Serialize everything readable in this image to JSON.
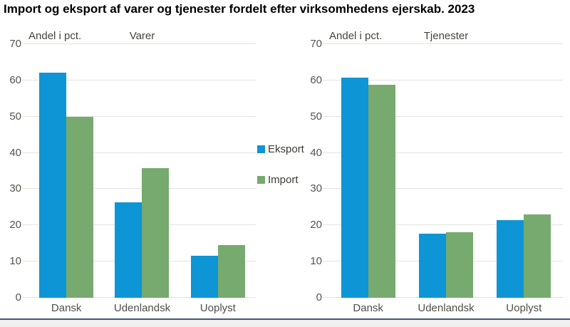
{
  "title": "Import og eksport af varer og tjenester fordelt efter virksomhedens ejerskab. 2023",
  "legend": {
    "items": [
      {
        "label": "Eksport",
        "color": "#0d95d5"
      },
      {
        "label": "Import",
        "color": "#77aa6e"
      }
    ]
  },
  "colors": {
    "eksport_blue": "#0d95d5",
    "import_green": "#77aa6e",
    "gridline": "#e3e3df",
    "axis_text": "#55534b",
    "footer_bar_navy": "#3c5a7a",
    "footer_strip_gray": "#f1f0ee"
  },
  "chart_data": [
    {
      "type": "bar",
      "title": "Varer",
      "ylabel": "Andel i pct.",
      "ylim": [
        0,
        70
      ],
      "ytick_step": 10,
      "grid": true,
      "legend_position": "center-between-charts",
      "categories": [
        "Dansk",
        "Udenlandsk",
        "Uoplyst"
      ],
      "series": [
        {
          "name": "Eksport",
          "color": "#0d95d5",
          "values": [
            62.1,
            26.3,
            11.7
          ]
        },
        {
          "name": "Import",
          "color": "#77aa6e",
          "values": [
            49.9,
            35.8,
            14.5
          ]
        }
      ]
    },
    {
      "type": "bar",
      "title": "Tjenester",
      "ylabel": "Andel i pct.",
      "ylim": [
        0,
        70
      ],
      "ytick_step": 10,
      "grid": true,
      "legend_position": "center-between-charts",
      "categories": [
        "Dansk",
        "Udenlandsk",
        "Uoplyst"
      ],
      "series": [
        {
          "name": "Eksport",
          "color": "#0d95d5",
          "values": [
            60.7,
            17.7,
            21.4
          ]
        },
        {
          "name": "Import",
          "color": "#77aa6e",
          "values": [
            58.8,
            18.0,
            23.0
          ]
        }
      ]
    }
  ]
}
